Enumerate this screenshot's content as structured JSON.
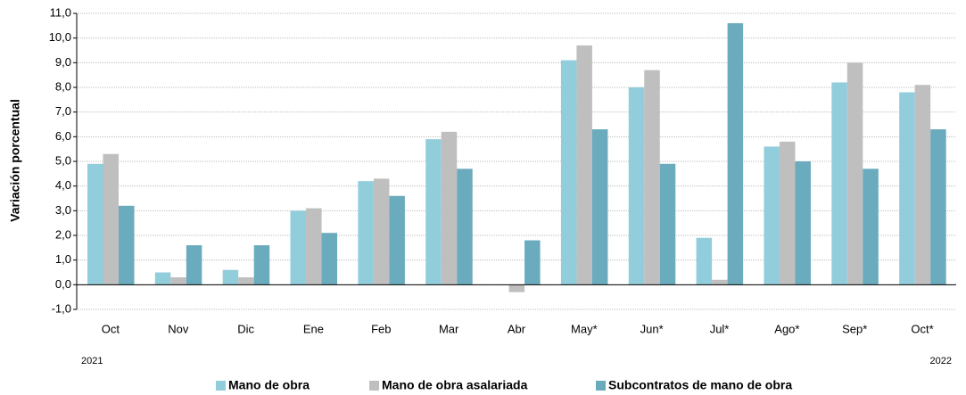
{
  "chart_data": {
    "type": "bar",
    "y_label": "Variación porcentual",
    "categories": [
      "Oct",
      "Nov",
      "Dic",
      "Ene",
      "Feb",
      "Mar",
      "Abr",
      "May*",
      "Jun*",
      "Jul*",
      "Ago*",
      "Sep*",
      "Oct*"
    ],
    "year_labels": [
      "2021",
      "2022"
    ],
    "series": [
      {
        "name": "Mano de obra",
        "color": "#92cddc",
        "values": [
          4.9,
          0.5,
          0.6,
          3.0,
          4.2,
          5.9,
          0,
          9.1,
          8.0,
          1.9,
          5.6,
          8.2,
          7.8
        ]
      },
      {
        "name": "Mano de obra asalariada",
        "color": "#bfbfbf",
        "values": [
          5.3,
          0.3,
          0.3,
          3.1,
          4.3,
          6.2,
          -0.3,
          9.7,
          8.7,
          0.2,
          5.8,
          9.0,
          8.1
        ]
      },
      {
        "name": "Subcontratos de mano de obra",
        "color": "#6aabbd",
        "values": [
          3.2,
          1.6,
          1.6,
          2.1,
          3.6,
          4.7,
          1.8,
          6.3,
          4.9,
          10.6,
          5.0,
          4.7,
          6.3
        ]
      }
    ],
    "ylim": [
      -1,
      11
    ],
    "yticks": [
      {
        "value": -1,
        "label": "-1,0"
      },
      {
        "value": 0,
        "label": "0,0"
      },
      {
        "value": 1,
        "label": "1,0"
      },
      {
        "value": 2,
        "label": "2,0"
      },
      {
        "value": 3,
        "label": "3,0"
      },
      {
        "value": 4,
        "label": "4,0"
      },
      {
        "value": 5,
        "label": "5,0"
      },
      {
        "value": 6,
        "label": "6,0"
      },
      {
        "value": 7,
        "label": "7,0"
      },
      {
        "value": 8,
        "label": "8,0"
      },
      {
        "value": 9,
        "label": "9,0"
      },
      {
        "value": 10,
        "label": "10,0"
      },
      {
        "value": 11,
        "label": "11,0"
      }
    ],
    "grid": true
  }
}
